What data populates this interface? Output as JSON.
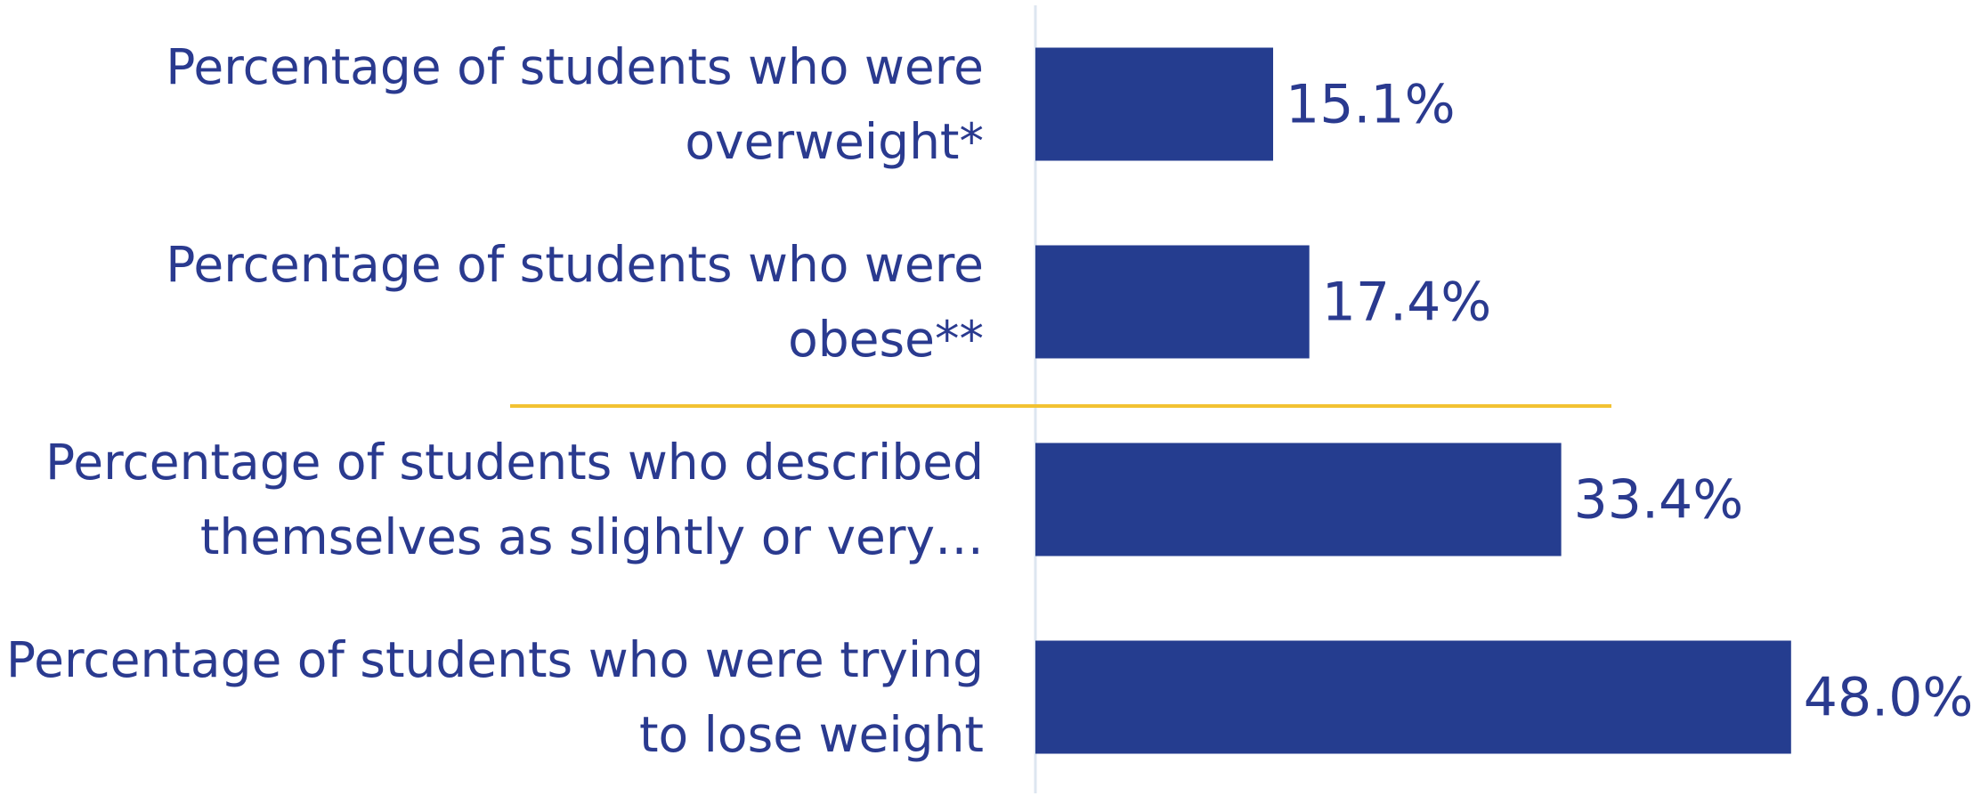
{
  "chart_data": {
    "type": "barh",
    "categories": [
      "Percentage of students who were overweight*",
      "Percentage of students who were obese**",
      "Percentage of students who described themselves as slightly or very…",
      "Percentage of students who were trying to lose weight"
    ],
    "values": [
      15.1,
      17.4,
      33.4,
      48.0
    ],
    "value_labels": [
      "15.1%",
      "17.4%",
      "33.4%",
      "48.0%"
    ],
    "color": "#253d8f",
    "xlim": [
      0,
      60
    ]
  }
}
